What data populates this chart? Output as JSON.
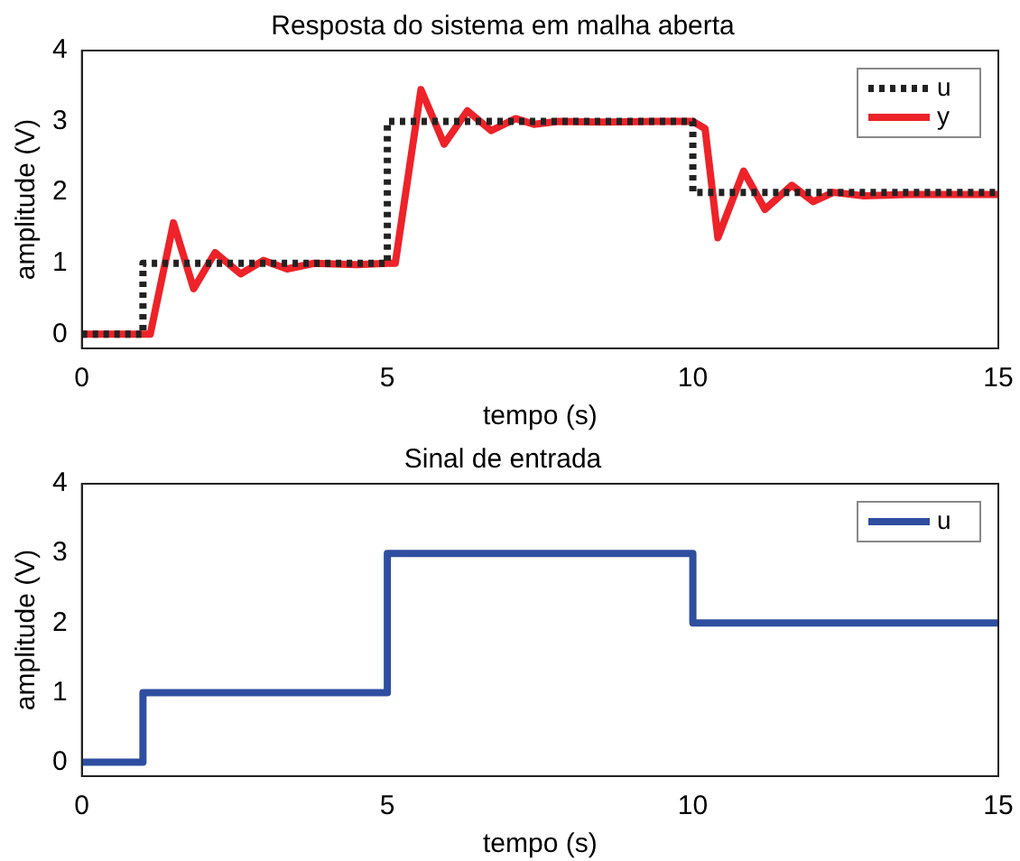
{
  "chart_data": [
    {
      "type": "line",
      "title": "Resposta do sistema em malha aberta",
      "xlabel": "tempo (s)",
      "ylabel": "amplitude (V)",
      "xlim": [
        0,
        15
      ],
      "xticks": [
        0,
        5,
        10,
        15
      ],
      "ylim": [
        -0.2,
        4
      ],
      "yticks": [
        0,
        1,
        2,
        3,
        4
      ],
      "grid": false,
      "legend": "top right",
      "series": [
        {
          "name": "u",
          "type": "step",
          "color": "#222222",
          "line_style": "dotted",
          "x": [
            0,
            1,
            5,
            10,
            15
          ],
          "values": [
            0,
            1,
            3,
            2,
            2
          ]
        },
        {
          "name": "y",
          "type": "line",
          "color": "#ee2229",
          "line_style": "solid",
          "x": [
            0,
            1.12,
            1.5,
            1.83,
            2.18,
            2.6,
            2.97,
            3.36,
            3.8,
            4.5,
            5.0,
            5.13,
            5.55,
            5.93,
            6.31,
            6.7,
            7.1,
            7.4,
            7.8,
            8.5,
            9.5,
            10.0,
            10.2,
            10.41,
            10.83,
            11.18,
            11.62,
            11.97,
            12.3,
            12.8,
            13.5,
            15
          ],
          "values": [
            0,
            0,
            1.57,
            0.64,
            1.15,
            0.85,
            1.04,
            0.92,
            1.0,
            0.98,
            1.0,
            1.0,
            3.45,
            2.68,
            3.15,
            2.87,
            3.04,
            2.96,
            3.0,
            2.99,
            3.0,
            3.0,
            2.9,
            1.36,
            2.3,
            1.76,
            2.1,
            1.87,
            2.0,
            1.95,
            1.97,
            1.97
          ]
        }
      ]
    },
    {
      "type": "step",
      "title": "Sinal de entrada",
      "xlabel": "tempo (s)",
      "ylabel": "amplitude (V)",
      "xlim": [
        0,
        15
      ],
      "xticks": [
        0,
        5,
        10,
        15
      ],
      "ylim": [
        -0.2,
        4
      ],
      "yticks": [
        0,
        1,
        2,
        3,
        4
      ],
      "grid": false,
      "legend": "top right",
      "series": [
        {
          "name": "u",
          "color": "#2e4ea0",
          "line_style": "solid",
          "x": [
            0,
            1,
            5,
            10,
            15
          ],
          "values": [
            0,
            1,
            3,
            2,
            2
          ]
        }
      ]
    }
  ]
}
